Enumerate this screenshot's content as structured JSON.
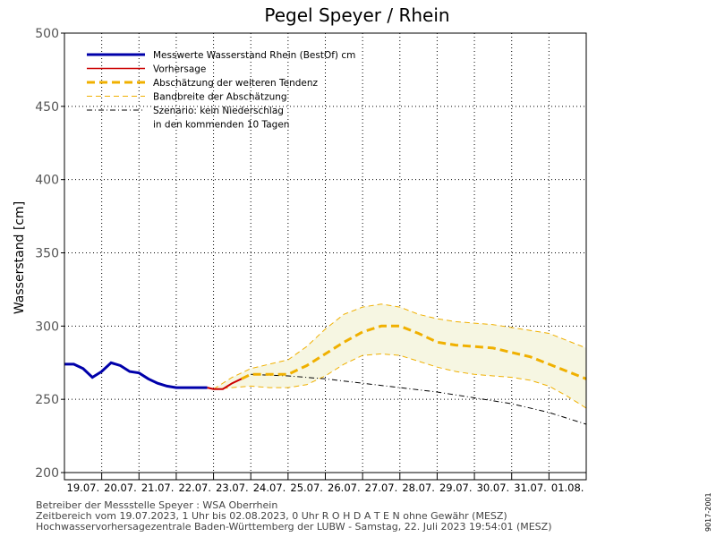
{
  "chart_data": {
    "type": "line",
    "title": "Pegel Speyer / Rhein",
    "ylabel": "Wasserstand [cm]",
    "xlabel": "",
    "ylim": [
      200,
      500
    ],
    "yticks": [
      200,
      250,
      300,
      350,
      400,
      450,
      500
    ],
    "x_range": [
      "2023-07-19",
      "2023-08-02"
    ],
    "x_tick_labels": [
      "19.07.",
      "20.07.",
      "21.07.",
      "22.07.",
      "23.07.",
      "24.07.",
      "25.07.",
      "26.07.",
      "27.07.",
      "28.07.",
      "29.07.",
      "30.07.",
      "31.07.",
      "01.08."
    ],
    "grid": true,
    "legend_position": "top-left",
    "legend": [
      {
        "label": "Messwerte Wasserstand Rhein (BestOf)  cm",
        "color": "#0000aa",
        "style": "solid-thick"
      },
      {
        "label": "Vorhersage",
        "color": "#cc0000",
        "style": "solid"
      },
      {
        "label": "Abschätzung der weiteren Tendenz",
        "color": "#f0b000",
        "style": "dashed-thick"
      },
      {
        "label": "Bandbreite der Abschätzung",
        "color": "#f0b000",
        "style": "dashed-thin"
      },
      {
        "label": "Szenario: kein Niederschlag",
        "color": "#000000",
        "style": "dashdot"
      },
      {
        "label": "in den kommenden 10 Tagen",
        "color": "",
        "style": "none"
      }
    ],
    "series": [
      {
        "name": "Messwerte Wasserstand Rhein (BestOf)  cm",
        "x": [
          "2023-07-19 00:00",
          "2023-07-19 06:00",
          "2023-07-19 12:00",
          "2023-07-19 18:00",
          "2023-07-20 00:00",
          "2023-07-20 06:00",
          "2023-07-20 12:00",
          "2023-07-20 18:00",
          "2023-07-21 00:00",
          "2023-07-21 06:00",
          "2023-07-21 12:00",
          "2023-07-21 18:00",
          "2023-07-22 00:00",
          "2023-07-22 06:00",
          "2023-07-22 12:00",
          "2023-07-22 20:00"
        ],
        "y": [
          274,
          274,
          271,
          265,
          269,
          275,
          273,
          269,
          268,
          264,
          261,
          259,
          258,
          258,
          258,
          258
        ]
      },
      {
        "name": "Vorhersage",
        "x": [
          "2023-07-22 20:00",
          "2023-07-23 00:00",
          "2023-07-23 06:00",
          "2023-07-23 12:00",
          "2023-07-23 18:00"
        ],
        "y": [
          258,
          257,
          257,
          261,
          264
        ]
      },
      {
        "name": "Abschätzung der weiteren Tendenz",
        "x": [
          "2023-07-23 18:00",
          "2023-07-24 00:00",
          "2023-07-24 12:00",
          "2023-07-25 00:00",
          "2023-07-25 12:00",
          "2023-07-26 00:00",
          "2023-07-26 12:00",
          "2023-07-27 00:00",
          "2023-07-27 12:00",
          "2023-07-28 00:00",
          "2023-07-28 12:00",
          "2023-07-29 00:00",
          "2023-07-29 12:00",
          "2023-07-30 00:00",
          "2023-07-30 12:00",
          "2023-07-31 00:00",
          "2023-07-31 12:00",
          "2023-08-01 00:00",
          "2023-08-01 12:00",
          "2023-08-02 00:00"
        ],
        "y": [
          264,
          267,
          267,
          267,
          273,
          281,
          289,
          296,
          300,
          300,
          295,
          289,
          287,
          286,
          285,
          282,
          279,
          274,
          269,
          264
        ]
      },
      {
        "name": "Bandbreite der Abschätzung (oben)",
        "x": [
          "2023-07-23 00:00",
          "2023-07-23 12:00",
          "2023-07-24 00:00",
          "2023-07-24 12:00",
          "2023-07-25 00:00",
          "2023-07-25 12:00",
          "2023-07-26 00:00",
          "2023-07-26 12:00",
          "2023-07-27 00:00",
          "2023-07-27 12:00",
          "2023-07-28 00:00",
          "2023-07-28 12:00",
          "2023-07-29 00:00",
          "2023-07-29 12:00",
          "2023-07-30 00:00",
          "2023-07-30 12:00",
          "2023-07-31 00:00",
          "2023-07-31 12:00",
          "2023-08-01 00:00",
          "2023-08-01 12:00",
          "2023-08-02 00:00"
        ],
        "y": [
          257,
          265,
          271,
          274,
          277,
          286,
          298,
          308,
          313,
          315,
          313,
          308,
          305,
          303,
          302,
          301,
          299,
          297,
          295,
          290,
          285
        ]
      },
      {
        "name": "Bandbreite der Abschätzung (unten)",
        "x": [
          "2023-07-23 00:00",
          "2023-07-23 12:00",
          "2023-07-24 00:00",
          "2023-07-24 12:00",
          "2023-07-25 00:00",
          "2023-07-25 12:00",
          "2023-07-26 00:00",
          "2023-07-26 12:00",
          "2023-07-27 00:00",
          "2023-07-27 12:00",
          "2023-07-28 00:00",
          "2023-07-28 12:00",
          "2023-07-29 00:00",
          "2023-07-29 12:00",
          "2023-07-30 00:00",
          "2023-07-30 12:00",
          "2023-07-31 00:00",
          "2023-07-31 12:00",
          "2023-08-01 00:00",
          "2023-08-01 12:00",
          "2023-08-02 00:00"
        ],
        "y": [
          257,
          258,
          259,
          258,
          258,
          260,
          266,
          274,
          280,
          281,
          280,
          276,
          272,
          269,
          267,
          266,
          265,
          263,
          259,
          252,
          244
        ]
      },
      {
        "name": "Szenario: kein Niederschlag",
        "x": [
          "2023-07-24 00:00",
          "2023-07-25 00:00",
          "2023-07-26 00:00",
          "2023-07-27 00:00",
          "2023-07-28 00:00",
          "2023-07-29 00:00",
          "2023-07-30 00:00",
          "2023-07-31 00:00",
          "2023-08-01 00:00",
          "2023-08-02 00:00"
        ],
        "y": [
          267,
          266,
          264,
          261,
          258,
          255,
          251,
          247,
          241,
          233
        ]
      }
    ]
  },
  "footer": {
    "line1": "Betreiber der Messstelle Speyer : WSA Oberrhein",
    "line2": "Zeitbereich vom 19.07.2023, 1 Uhr bis 02.08.2023, 0 Uhr   R O H D A T E N ohne Gewähr (MESZ)",
    "line3": "Hochwasservorhersagezentrale Baden-Württemberg der LUBW - Samstag, 22. Juli 2023 19:54:01 (MESZ)"
  },
  "side_code": "9017-2001",
  "colors": {
    "measured": "#0000aa",
    "forecast": "#cc0000",
    "tendency": "#f0b000",
    "band_fill": "#f6f6e2",
    "scenario": "#000000"
  }
}
